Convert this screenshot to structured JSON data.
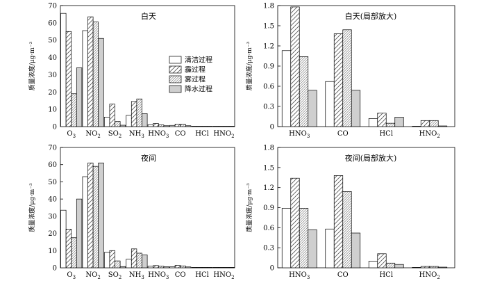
{
  "legend": {
    "entries": [
      {
        "label": "清洁过程",
        "series_key": "clean"
      },
      {
        "label": "霾过程",
        "series_key": "haze"
      },
      {
        "label": "雾过程",
        "series_key": "fog"
      },
      {
        "label": "降水过程",
        "series_key": "rain"
      }
    ]
  },
  "chart_data": [
    {
      "type": "bar",
      "title": "白天",
      "ylabel": "质量浓度/μg·m⁻³",
      "ylim": [
        0,
        70
      ],
      "yticks": [
        "0",
        "10",
        "20",
        "30",
        "40",
        "50",
        "60",
        "70"
      ],
      "yticks_values": [
        0,
        10,
        20,
        30,
        40,
        50,
        60,
        70
      ],
      "categories": [
        "O3",
        "NO2",
        "SO2",
        "NH3",
        "HNO3",
        "CO",
        "HCl",
        "HNO2"
      ],
      "category_labels": [
        {
          "base": "O",
          "sub": "3"
        },
        {
          "base": "NO",
          "sub": "2"
        },
        {
          "base": "SO",
          "sub": "2"
        },
        {
          "base": "NH",
          "sub": "3"
        },
        {
          "base": "HNO",
          "sub": "3"
        },
        {
          "base": "CO",
          "sub": ""
        },
        {
          "base": "HCl",
          "sub": ""
        },
        {
          "base": "HNO",
          "sub": "2"
        }
      ],
      "series": [
        {
          "name": "清洁过程",
          "values": [
            65.5,
            55.5,
            5.5,
            6.5,
            1.1,
            0.7,
            0.1,
            0.0
          ]
        },
        {
          "name": "霾过程",
          "values": [
            55.0,
            63.5,
            13.0,
            14.5,
            1.8,
            1.4,
            0.2,
            0.1
          ]
        },
        {
          "name": "雾过程",
          "values": [
            19.0,
            60.5,
            3.0,
            16.0,
            1.0,
            1.4,
            0.05,
            0.1
          ]
        },
        {
          "name": "降水过程",
          "values": [
            34.0,
            51.0,
            0.8,
            7.5,
            0.5,
            0.5,
            0.1,
            0.0
          ]
        }
      ]
    },
    {
      "type": "bar",
      "title": "白天(局部放大)",
      "ylabel": "质量浓度/μg·m⁻³",
      "ylim": [
        0,
        1.8
      ],
      "yticks": [
        "0",
        "0.3",
        "0.6",
        "0.9",
        "1.2",
        "1.5",
        "1.8"
      ],
      "yticks_values": [
        0,
        0.3,
        0.6,
        0.9,
        1.2,
        1.5,
        1.8
      ],
      "categories": [
        "HNO3",
        "CO",
        "HCl",
        "HNO2"
      ],
      "category_labels": [
        {
          "base": "HNO",
          "sub": "3"
        },
        {
          "base": "CO",
          "sub": ""
        },
        {
          "base": "HCl",
          "sub": ""
        },
        {
          "base": "HNO",
          "sub": "2"
        }
      ],
      "series": [
        {
          "name": "清洁过程",
          "values": [
            1.13,
            0.67,
            0.12,
            0.0
          ]
        },
        {
          "name": "霾过程",
          "values": [
            1.78,
            1.38,
            0.2,
            0.09
          ]
        },
        {
          "name": "雾过程",
          "values": [
            1.04,
            1.44,
            0.05,
            0.09
          ]
        },
        {
          "name": "降水过程",
          "values": [
            0.54,
            0.54,
            0.14,
            0.01
          ]
        }
      ]
    },
    {
      "type": "bar",
      "title": "夜间",
      "ylabel": "质量浓度/μg·m⁻³",
      "ylim": [
        0,
        70
      ],
      "yticks": [
        "0",
        "10",
        "20",
        "30",
        "40",
        "50",
        "60",
        "70"
      ],
      "yticks_values": [
        0,
        10,
        20,
        30,
        40,
        50,
        60,
        70
      ],
      "categories": [
        "O3",
        "NO2",
        "SO2",
        "NH3",
        "HNO3",
        "CO",
        "HCl",
        "HNO2"
      ],
      "category_labels": [
        {
          "base": "O",
          "sub": "3"
        },
        {
          "base": "NO",
          "sub": "2"
        },
        {
          "base": "SO",
          "sub": "2"
        },
        {
          "base": "NH",
          "sub": "3"
        },
        {
          "base": "HNO",
          "sub": "3"
        },
        {
          "base": "CO",
          "sub": ""
        },
        {
          "base": "HCl",
          "sub": ""
        },
        {
          "base": "HNO",
          "sub": "2"
        }
      ],
      "series": [
        {
          "name": "清洁过程",
          "values": [
            33.5,
            53.0,
            9.0,
            5.0,
            0.9,
            0.6,
            0.1,
            0.0
          ]
        },
        {
          "name": "霾过程",
          "values": [
            22.5,
            61.0,
            10.0,
            11.0,
            1.3,
            1.4,
            0.2,
            0.02
          ]
        },
        {
          "name": "雾过程",
          "values": [
            17.5,
            59.0,
            4.0,
            8.5,
            0.9,
            1.1,
            0.07,
            0.02
          ]
        },
        {
          "name": "降水过程",
          "values": [
            40.0,
            61.0,
            0.7,
            7.5,
            0.6,
            0.5,
            0.05,
            0.01
          ]
        }
      ]
    },
    {
      "type": "bar",
      "title": "夜间(局部放大)",
      "ylabel": "质量浓度/μg·m⁻³",
      "ylim": [
        0,
        1.8
      ],
      "yticks": [
        "0",
        "0.3",
        "0.6",
        "0.9",
        "1.2",
        "1.5",
        "1.8"
      ],
      "yticks_values": [
        0,
        0.3,
        0.6,
        0.9,
        1.2,
        1.5,
        1.8
      ],
      "categories": [
        "HNO3",
        "CO",
        "HCl",
        "HNO2"
      ],
      "category_labels": [
        {
          "base": "HNO",
          "sub": "3"
        },
        {
          "base": "CO",
          "sub": ""
        },
        {
          "base": "HCl",
          "sub": ""
        },
        {
          "base": "HNO",
          "sub": "2"
        }
      ],
      "series": [
        {
          "name": "清洁过程",
          "values": [
            0.89,
            0.58,
            0.1,
            0.0
          ]
        },
        {
          "name": "霾过程",
          "values": [
            1.34,
            1.38,
            0.21,
            0.02
          ]
        },
        {
          "name": "雾过程",
          "values": [
            0.89,
            1.14,
            0.07,
            0.02
          ]
        },
        {
          "name": "降水过程",
          "values": [
            0.57,
            0.52,
            0.05,
            0.01
          ]
        }
      ]
    }
  ]
}
